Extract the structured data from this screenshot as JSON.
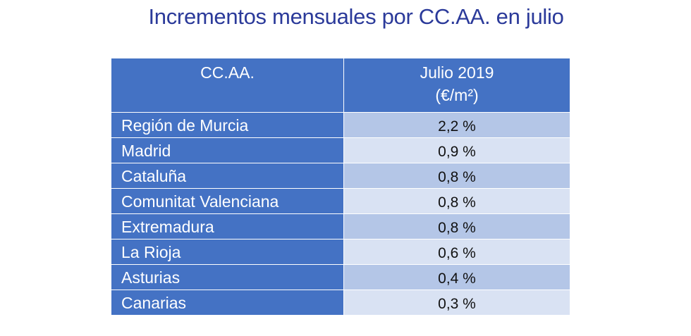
{
  "title": "Incrementos mensuales por CC.AA. en julio",
  "table": {
    "header": {
      "col1": "CC.AA.",
      "col2_line1": "Julio 2019",
      "col2_line2": "(€/m²)"
    },
    "rows": [
      {
        "region": "Región de Murcia",
        "value": "2,2 %"
      },
      {
        "region": "Madrid",
        "value": "0,9 %"
      },
      {
        "region": "Cataluña",
        "value": "0,8 %"
      },
      {
        "region": "Comunitat Valenciana",
        "value": "0,8 %"
      },
      {
        "region": "Extremadura",
        "value": "0,8 %"
      },
      {
        "region": "La Rioja",
        "value": "0,6 %"
      },
      {
        "region": "Asturias",
        "value": "0,4 %"
      },
      {
        "region": "Canarias",
        "value": "0,3 %"
      }
    ]
  },
  "colors": {
    "title": "#2b3a9a",
    "header_bg": "#4472c4",
    "row_odd_bg": "#b4c6e7",
    "row_even_bg": "#d9e2f3"
  }
}
